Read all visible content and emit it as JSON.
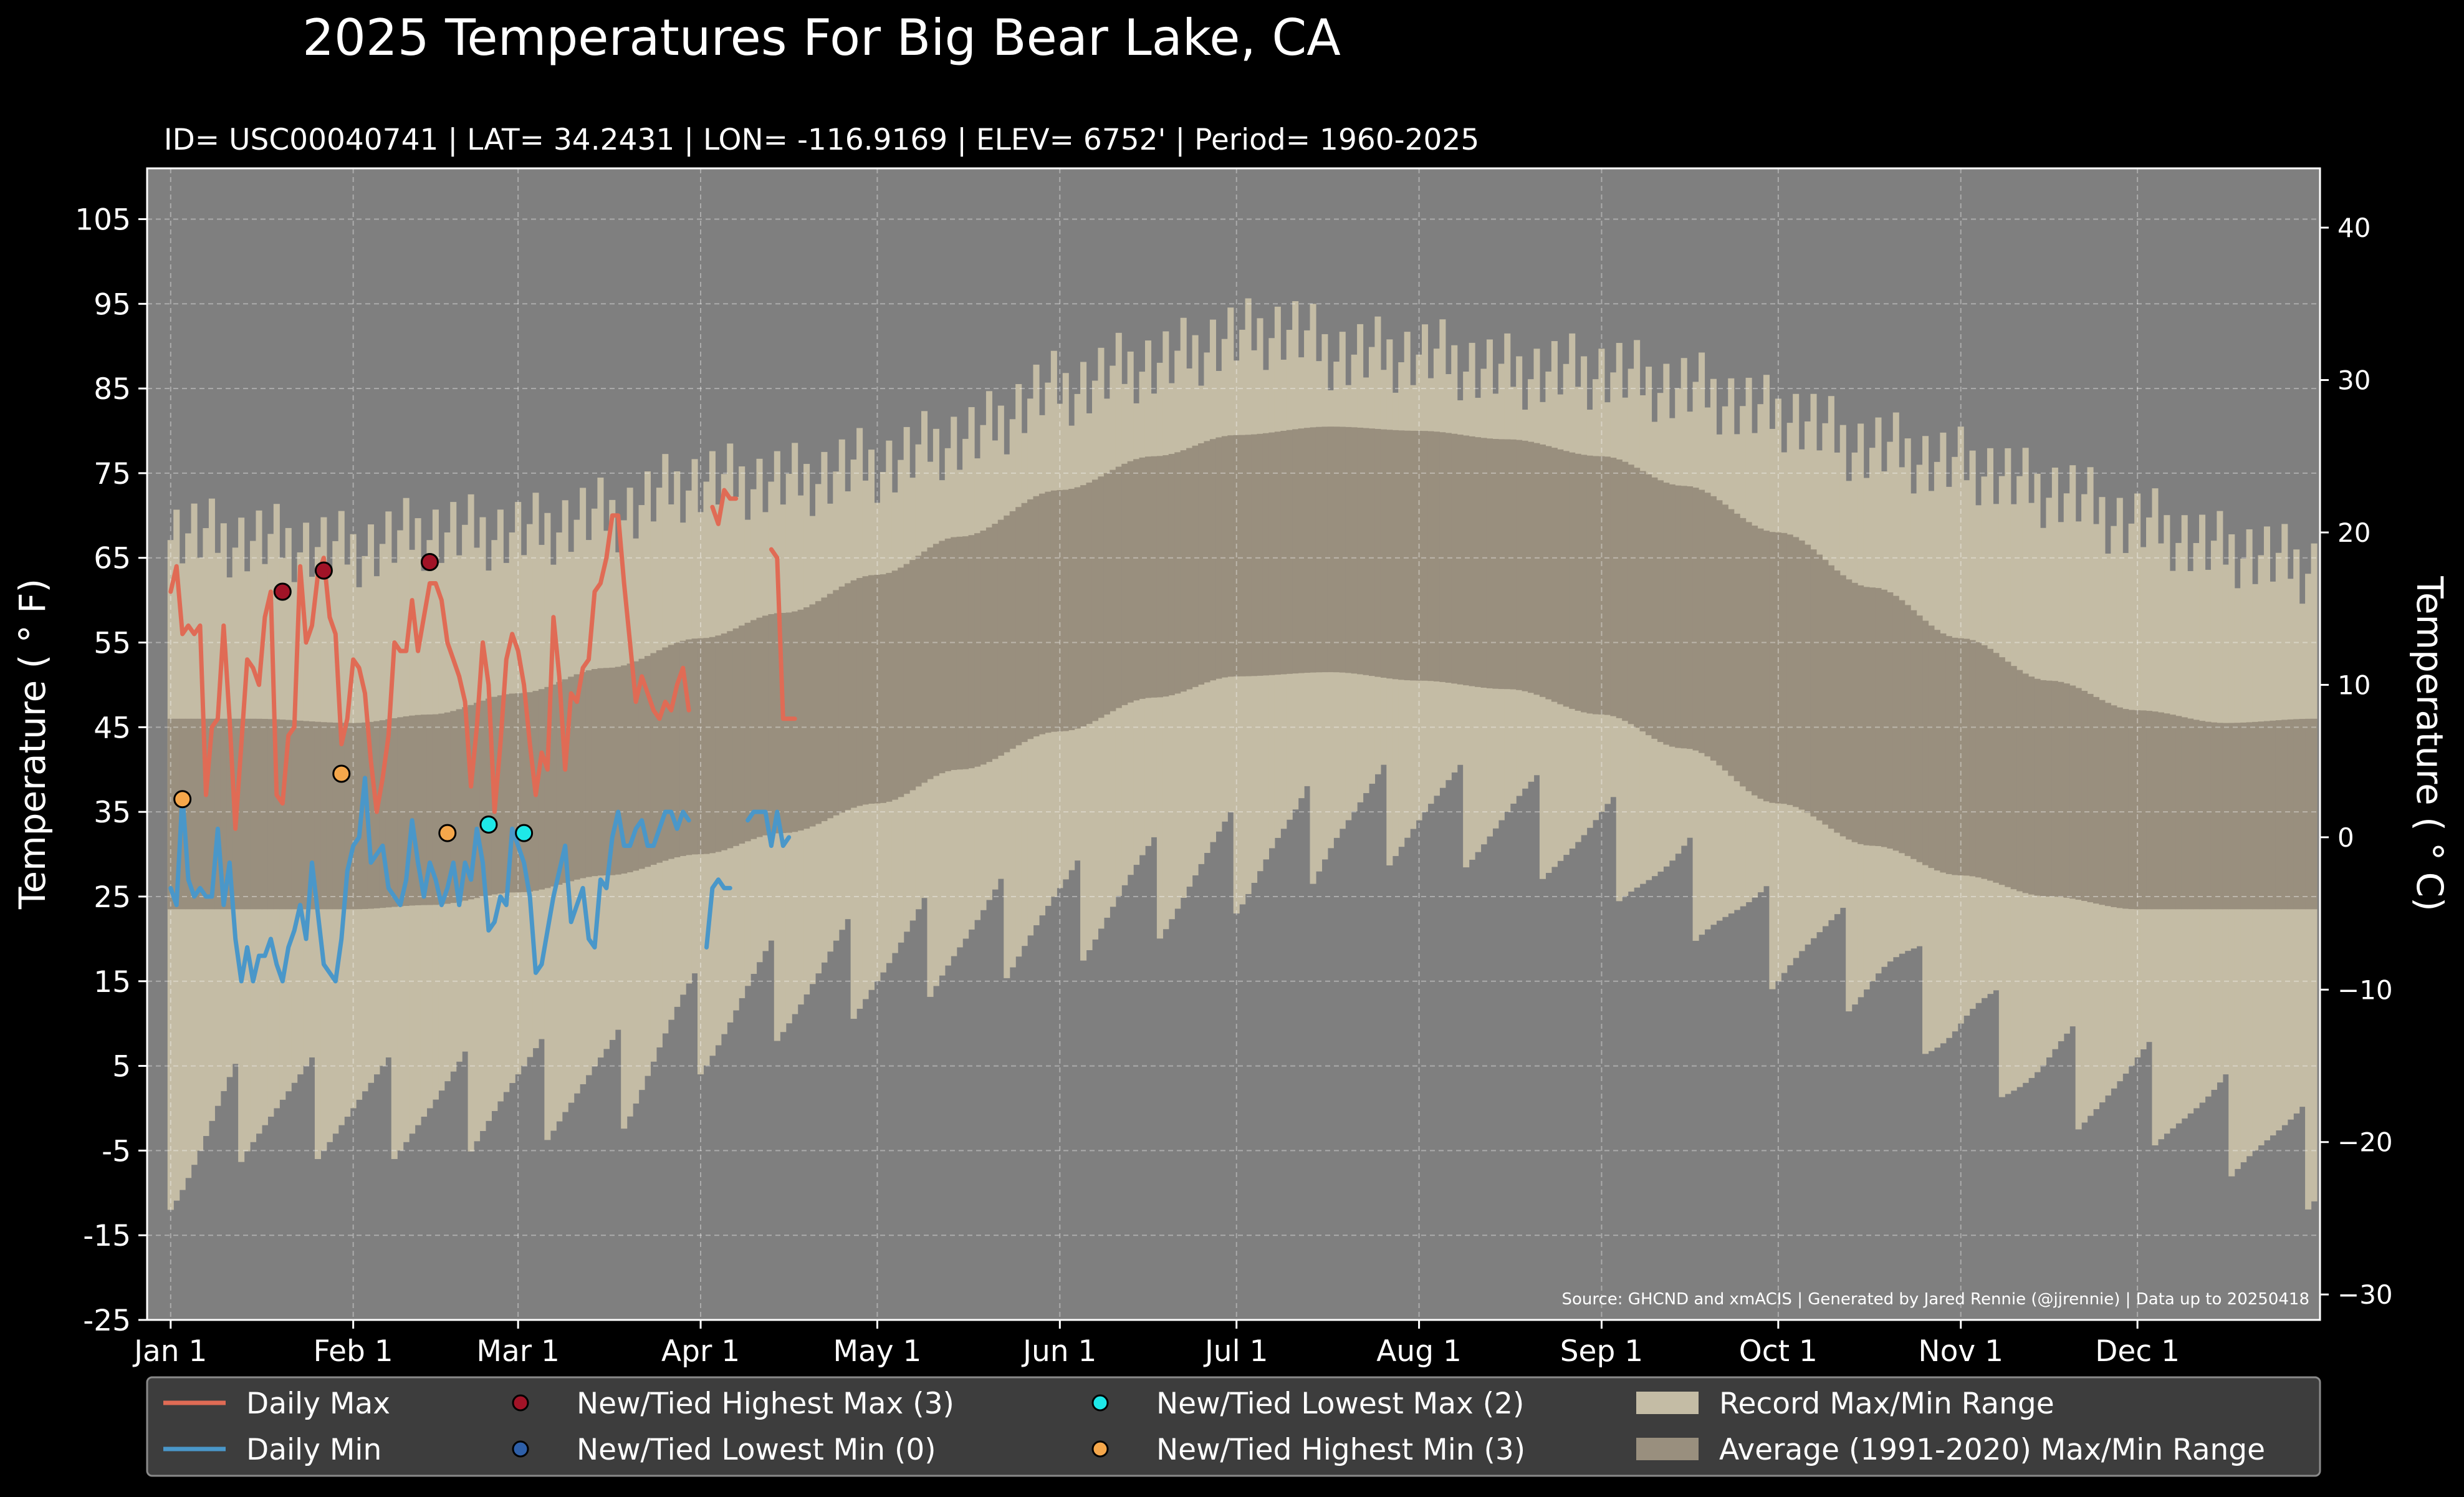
{
  "chart_data": {
    "type": "area",
    "title": "2025 Temperatures For Big Bear Lake, CA",
    "subtitle": "ID= USC00040741 | LAT= 34.2431 | LON= -116.9169 | ELEV= 6752' | Period= 1960-2025",
    "ylabel": "Temperature ( ° F)",
    "ylabel_right": "Temperature ( ° C)",
    "source": "Source: GHCND and xmACIS | Generated by Jared Rennie (@jjrennie) | Data up to 20250418",
    "ylim": [
      -25,
      111
    ],
    "ylim_c": [
      -31.67,
      43.89
    ],
    "yticks": [
      "105",
      "95",
      "85",
      "75",
      "65",
      "55",
      "45",
      "35",
      "25",
      "15",
      "5",
      "-5",
      "-15",
      "-25"
    ],
    "yticks_right": [
      "40",
      "30",
      "20",
      "10",
      "0",
      "−10",
      "−20",
      "−30"
    ],
    "xticks": [
      {
        "label": "Jan 1",
        "day": 1
      },
      {
        "label": "Feb 1",
        "day": 32
      },
      {
        "label": "Mar 1",
        "day": 60
      },
      {
        "label": "Apr 1",
        "day": 91
      },
      {
        "label": "May 1",
        "day": 121
      },
      {
        "label": "Jun 1",
        "day": 152
      },
      {
        "label": "Jul 1",
        "day": 182
      },
      {
        "label": "Aug 1",
        "day": 213
      },
      {
        "label": "Sep 1",
        "day": 244
      },
      {
        "label": "Oct 1",
        "day": 274
      },
      {
        "label": "Nov 1",
        "day": 305
      },
      {
        "label": "Dec 1",
        "day": 335
      }
    ],
    "xlim_days": [
      -3,
      366
    ],
    "grid": true,
    "legend_position": "bottom",
    "colors": {
      "background": "#000000",
      "plot_background": "#7f7f7f",
      "record_range": "#c4bca5",
      "average_range": "#998f7e",
      "daily_max": "#e06b55",
      "daily_min": "#4a97c9",
      "highest_max": "#a11327",
      "lowest_min": "#2e5fa8",
      "lowest_max": "#1ee8e8",
      "highest_min": "#f5a74b",
      "legend_background": "#3d3d3d"
    },
    "record_max_anchors": {
      "days": [
        1,
        15,
        32,
        45,
        60,
        75,
        91,
        105,
        121,
        135,
        152,
        168,
        182,
        190,
        200,
        213,
        228,
        244,
        258,
        274,
        290,
        305,
        320,
        335,
        350,
        365
      ],
      "values": [
        68,
        67,
        66,
        68,
        68,
        70,
        74,
        74,
        76,
        79,
        85,
        88,
        91,
        92,
        89,
        89,
        87,
        87,
        85,
        82,
        78,
        76,
        73,
        69,
        66,
        64
      ]
    },
    "record_min_anchors": {
      "days": [
        1,
        15,
        32,
        45,
        60,
        75,
        91,
        105,
        121,
        135,
        152,
        168,
        182,
        190,
        200,
        213,
        228,
        244,
        258,
        274,
        290,
        305,
        320,
        335,
        350,
        365
      ],
      "values": [
        -7,
        0,
        0,
        0,
        2,
        3,
        10,
        14,
        17,
        20,
        23,
        26,
        29,
        31,
        34,
        35,
        34,
        31,
        26,
        20,
        17,
        10,
        4,
        2,
        -2,
        -6
      ]
    },
    "average_max_anchors": {
      "days": [
        1,
        15,
        32,
        45,
        60,
        75,
        91,
        105,
        121,
        135,
        152,
        168,
        182,
        198,
        213,
        228,
        244,
        258,
        274,
        290,
        305,
        320,
        335,
        350,
        365
      ],
      "values": [
        46,
        46,
        45.5,
        46.5,
        49,
        52,
        55.5,
        58.5,
        63,
        67.5,
        73,
        77,
        79.5,
        80.5,
        80,
        79,
        77,
        73.5,
        68,
        61.5,
        55.5,
        50.5,
        47,
        45.5,
        46
      ]
    },
    "average_min_anchors": {
      "days": [
        1,
        15,
        32,
        45,
        60,
        75,
        91,
        105,
        121,
        135,
        152,
        168,
        182,
        198,
        213,
        228,
        244,
        258,
        274,
        290,
        305,
        320,
        335,
        350,
        365
      ],
      "values": [
        23.5,
        23.5,
        23.5,
        24,
        25.5,
        27.5,
        30,
        32.5,
        36,
        40,
        44.5,
        48.5,
        51,
        51.5,
        50.5,
        49.5,
        46.5,
        42.5,
        36,
        31,
        27.5,
        25,
        23.5,
        23.5,
        23.5
      ]
    },
    "series": [
      {
        "name": "Daily Max",
        "segments": [
          {
            "x": [
              1,
              2,
              3,
              4,
              5,
              6,
              7,
              8,
              9,
              10,
              11,
              12,
              13,
              14,
              15,
              16,
              17,
              18,
              19,
              20,
              21,
              22,
              23,
              24,
              25,
              26,
              27,
              28,
              29,
              30,
              31,
              32,
              33,
              34,
              35,
              36,
              37,
              38,
              39,
              40,
              41,
              42,
              43,
              44,
              45,
              46,
              47,
              48,
              49,
              50,
              51,
              52,
              53,
              54,
              55,
              56,
              57,
              58,
              59,
              60,
              61,
              62,
              63,
              64,
              65,
              66,
              67,
              68,
              69,
              70,
              71,
              72,
              73,
              74,
              75,
              76,
              77,
              78,
              79,
              80,
              81,
              82,
              83,
              84,
              85,
              86,
              87,
              88,
              89
            ],
            "y": [
              61,
              64,
              56,
              57,
              56,
              57,
              37,
              45,
              46,
              57,
              46,
              33,
              43,
              53,
              52,
              50,
              58,
              61,
              37,
              36,
              44,
              45,
              64,
              55,
              57,
              63,
              65,
              58,
              56,
              43,
              46,
              53,
              52,
              49,
              41,
              35,
              39,
              44,
              55,
              54,
              54,
              60,
              54,
              58,
              62,
              62,
              60,
              55,
              53,
              51,
              48,
              38,
              45,
              55,
              50,
              35,
              43,
              53,
              56,
              54,
              50,
              43,
              37,
              42,
              40,
              58,
              51,
              40,
              49,
              48,
              52,
              53,
              61,
              62,
              65,
              70,
              70,
              62,
              55,
              48,
              51,
              49,
              47,
              46,
              48,
              47,
              50,
              52,
              47
            ]
          },
          {
            "x": [
              93,
              94,
              95,
              96,
              97
            ],
            "y": [
              71,
              69,
              73,
              72,
              72
            ]
          },
          {
            "x": [
              103,
              104,
              105,
              106,
              107
            ],
            "y": [
              66,
              65,
              46,
              46,
              46
            ]
          }
        ]
      },
      {
        "name": "Daily Min",
        "segments": [
          {
            "x": [
              1,
              2,
              3,
              4,
              5,
              6,
              7,
              8,
              9,
              10,
              11,
              12,
              13,
              14,
              15,
              16,
              17,
              18,
              19,
              20,
              21,
              22,
              23,
              24,
              25,
              26,
              27,
              28,
              29,
              30,
              31,
              32,
              33,
              34,
              35,
              36,
              37,
              38,
              39,
              40,
              41,
              42,
              43,
              44,
              45,
              46,
              47,
              48,
              49,
              50,
              51,
              52,
              53,
              54,
              55,
              56,
              57,
              58,
              59,
              60,
              61,
              62,
              63,
              64,
              65,
              66,
              67,
              68,
              69,
              70,
              71,
              72,
              73,
              74,
              75,
              76,
              77,
              78,
              79,
              80,
              81,
              82,
              83,
              84,
              85,
              86,
              87,
              88,
              89
            ],
            "y": [
              26,
              24,
              37,
              27,
              25,
              26,
              25,
              25,
              33,
              24,
              29,
              20,
              15,
              19,
              15,
              18,
              18,
              20,
              17,
              15,
              19,
              21,
              24,
              20,
              29,
              23,
              17,
              16,
              15,
              20,
              28,
              31,
              32,
              39,
              29,
              30,
              31,
              26,
              25,
              24,
              27,
              34,
              29,
              25,
              29,
              27,
              24,
              26,
              29,
              24,
              29,
              27,
              33,
              29,
              21,
              22,
              25,
              24,
              33,
              31,
              29,
              25,
              16,
              17,
              21,
              25,
              28,
              31,
              22,
              24,
              26,
              20,
              19,
              27,
              26,
              32,
              35,
              31,
              31,
              33,
              34,
              31,
              31,
              33,
              35,
              35,
              33,
              35,
              34
            ]
          },
          {
            "x": [
              92,
              93,
              94,
              95,
              96
            ],
            "y": [
              19,
              26,
              27,
              26,
              26
            ]
          },
          {
            "x": [
              99,
              100,
              101,
              102,
              103,
              104,
              105,
              106
            ],
            "y": [
              34,
              35,
              35,
              35,
              31,
              35,
              31,
              32
            ]
          }
        ]
      }
    ],
    "markers": {
      "highest_max": [
        {
          "x": 20,
          "y": 61
        },
        {
          "x": 27,
          "y": 63.5
        },
        {
          "x": 45,
          "y": 64.5
        }
      ],
      "lowest_min": [],
      "lowest_max": [
        {
          "x": 55,
          "y": 33.5
        },
        {
          "x": 61,
          "y": 32.5
        }
      ],
      "highest_min": [
        {
          "x": 3,
          "y": 36.5
        },
        {
          "x": 30,
          "y": 39.5
        },
        {
          "x": 48,
          "y": 32.5
        }
      ]
    },
    "legend": [
      {
        "key": "daily_max",
        "label": "Daily Max",
        "kind": "line"
      },
      {
        "key": "highest_max",
        "label": "New/Tied Highest Max (3)",
        "kind": "dot"
      },
      {
        "key": "lowest_max",
        "label": "New/Tied Lowest Max (2)",
        "kind": "dot"
      },
      {
        "key": "record_range",
        "label": "Record Max/Min Range",
        "kind": "patch"
      },
      {
        "key": "daily_min",
        "label": "Daily Min",
        "kind": "line"
      },
      {
        "key": "lowest_min",
        "label": "New/Tied Lowest Min (0)",
        "kind": "dot"
      },
      {
        "key": "highest_min",
        "label": "New/Tied Highest Min (3)",
        "kind": "dot"
      },
      {
        "key": "average_range",
        "label": "Average (1991-2020) Max/Min Range",
        "kind": "patch"
      }
    ]
  }
}
